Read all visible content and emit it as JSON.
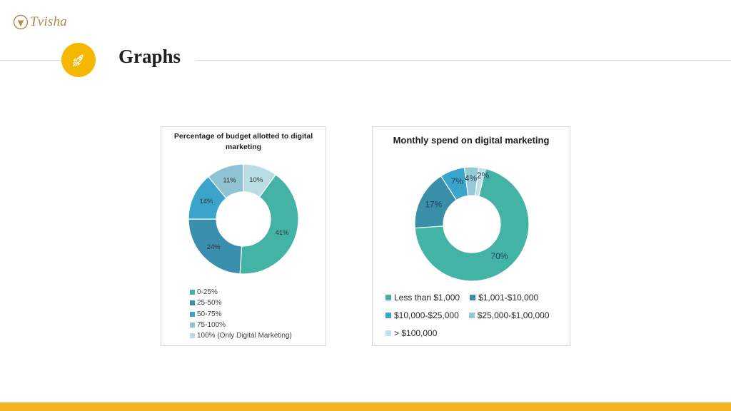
{
  "brand": {
    "name": "Tvisha",
    "logo_icon": "tvisha-flower-logo"
  },
  "header": {
    "title": "Graphs",
    "badge_icon": "rocket-icon",
    "accent": "#f5b800"
  },
  "footer": {
    "bar_color": "#f5b41f"
  },
  "chart_data": [
    {
      "type": "pie",
      "donut": true,
      "title": "Percentage of budget allotted to digital marketing",
      "categories": [
        "0-25%",
        "25-50%",
        "50-75%",
        "75-100%",
        "100% (Only Digital Marketing)"
      ],
      "values": [
        41,
        24,
        14,
        11,
        10
      ],
      "data_labels": [
        "41%",
        "24%",
        "14%",
        "11%",
        "10%"
      ],
      "colors": [
        "#43b3a5",
        "#3b8fae",
        "#3aa4cb",
        "#8fc3d3",
        "#b9dde5"
      ],
      "legend_position": "bottom"
    },
    {
      "type": "pie",
      "donut": true,
      "title": "Monthly spend on digital marketing",
      "categories": [
        "Less than $1,000",
        "$1,001-$10,000",
        "$10,000-$25,000",
        "$25,000-$1,00,000",
        "> $100,000"
      ],
      "values": [
        70,
        17,
        7,
        4,
        2
      ],
      "data_labels": [
        "70%",
        "17%",
        "7%",
        "4%",
        "2%"
      ],
      "colors": [
        "#43b3a5",
        "#3a8fa8",
        "#3aa4cb",
        "#94c9d6",
        "#bfe1e8"
      ],
      "legend_position": "bottom"
    }
  ]
}
